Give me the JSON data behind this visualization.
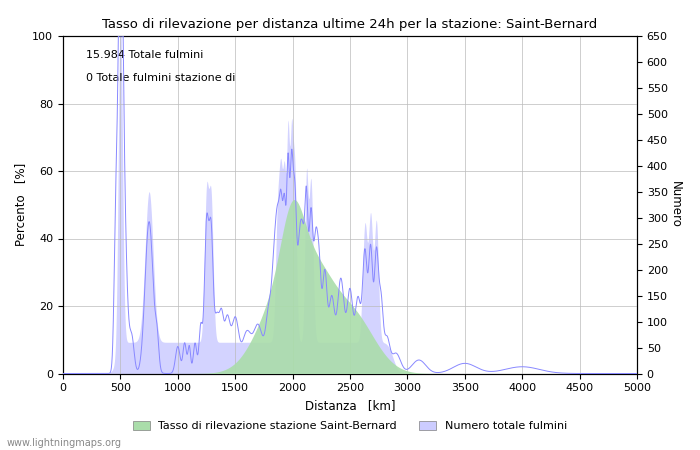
{
  "title": "Tasso di rilevazione per distanza ultime 24h per la stazione: Saint-Bernard",
  "xlabel": "Distanza   [km]",
  "ylabel_left": "Percento   [%]",
  "ylabel_right": "Numero",
  "xlim": [
    0,
    5000
  ],
  "ylim_left": [
    0,
    100
  ],
  "ylim_right": [
    0,
    650
  ],
  "yticks_left": [
    0,
    20,
    40,
    60,
    80,
    100
  ],
  "yticks_right": [
    0,
    50,
    100,
    150,
    200,
    250,
    300,
    350,
    400,
    450,
    500,
    550,
    600,
    650
  ],
  "xticks": [
    0,
    500,
    1000,
    1500,
    2000,
    2500,
    3000,
    3500,
    4000,
    4500,
    5000
  ],
  "annotation1": "15.984 Totale fulmini",
  "annotation2": "0 Totale fulmini stazione di",
  "legend1": "Tasso di rilevazione stazione Saint-Bernard",
  "legend2": "Numero totale fulmini",
  "watermark": "www.lightningmaps.org",
  "green_fill_color": "#aaddaa",
  "blue_fill_color": "#ccccff",
  "line_color": "#8888ff",
  "bg_color": "#ffffff",
  "grid_color": "#bbbbbb"
}
